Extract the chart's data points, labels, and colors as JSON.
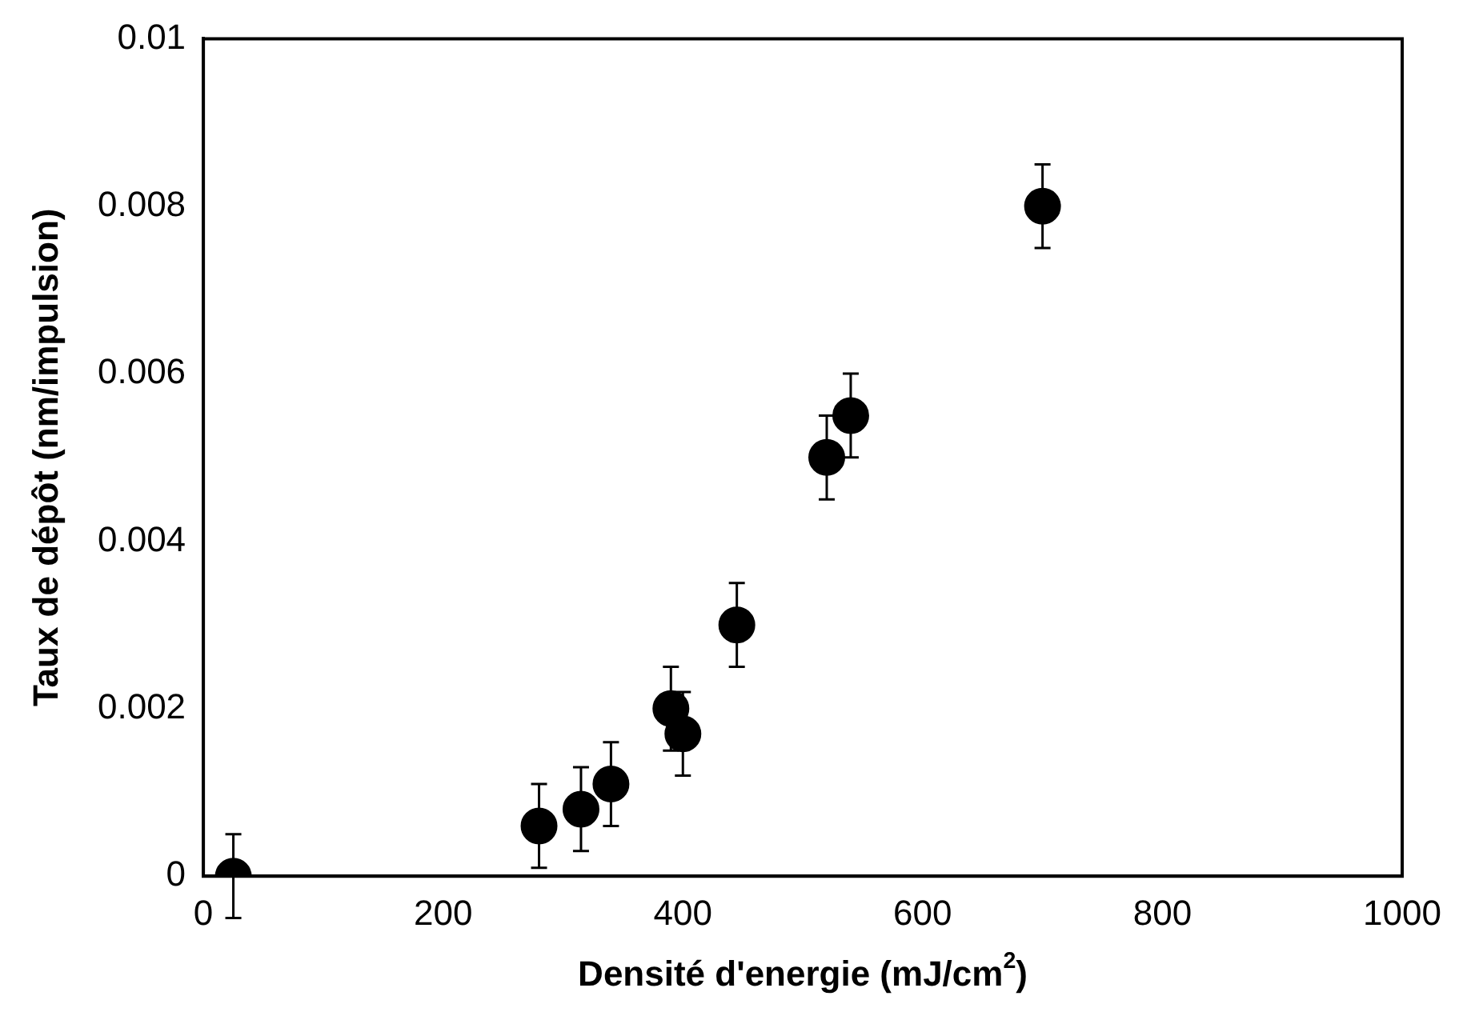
{
  "chart_data": {
    "type": "scatter",
    "xlabel": "Densité d'energie (mJ/cm$^{2}$)",
    "ylabel": "Taux de dépôt (nm/impulsion)",
    "x": [
      25,
      280,
      315,
      340,
      390,
      400,
      445,
      520,
      540,
      700
    ],
    "values": [
      0,
      0.0006,
      0.0008,
      0.0011,
      0.002,
      0.0017,
      0.003,
      0.005,
      0.0055,
      0.008
    ],
    "errors": [
      0.0005,
      0.0005,
      0.0005,
      0.0005,
      0.0005,
      0.0005,
      0.0005,
      0.0005,
      0.0005,
      0.0005
    ],
    "color": "#000000",
    "marker": "circle",
    "xlim": [
      0,
      1000
    ],
    "xticks": [
      0,
      200,
      400,
      600,
      800,
      1000
    ],
    "ylim": [
      0,
      0.01
    ],
    "yticks": [
      0,
      0.002,
      0.004,
      0.006,
      0.008,
      0.01
    ],
    "grid": false,
    "legend": false
  }
}
